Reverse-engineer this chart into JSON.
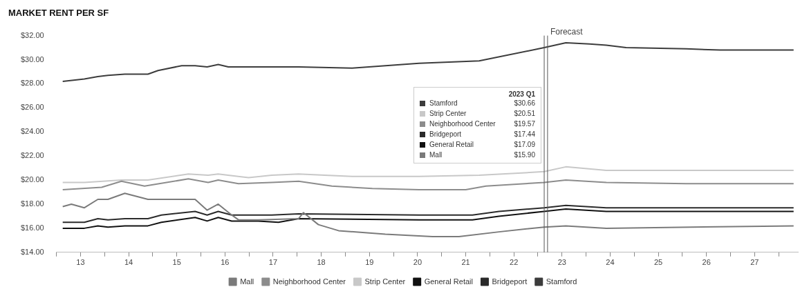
{
  "chart_data": {
    "type": "line",
    "title": "MARKET RENT PER SF",
    "xlim": [
      12.5,
      27.9
    ],
    "xticks": [
      {
        "value": 12.5,
        "label": null
      },
      13,
      {
        "value": 13.5,
        "label": null
      },
      14,
      {
        "value": 14.5,
        "label": null
      },
      15,
      {
        "value": 15.5,
        "label": null
      },
      16,
      {
        "value": 16.5,
        "label": null
      },
      17,
      {
        "value": 17.5,
        "label": null
      },
      18,
      {
        "value": 18.5,
        "label": null
      },
      19,
      {
        "value": 19.5,
        "label": null
      },
      20,
      {
        "value": 20.5,
        "label": null
      },
      21,
      {
        "value": 21.5,
        "label": null
      },
      22,
      {
        "value": 22.5,
        "label": null
      },
      23,
      {
        "value": 23.5,
        "label": null
      },
      24,
      {
        "value": 24.5,
        "label": null
      },
      25,
      {
        "value": 25.5,
        "label": null
      },
      26,
      {
        "value": 26.5,
        "label": null
      },
      27,
      {
        "value": 27.5,
        "label": null
      }
    ],
    "ylim": [
      14,
      32
    ],
    "yticks": [
      {
        "value": 14,
        "label": "$14.00"
      },
      {
        "value": 16,
        "label": "$16.00"
      },
      {
        "value": 18,
        "label": "$18.00"
      },
      {
        "value": 20,
        "label": "$20.00"
      },
      {
        "value": 22,
        "label": "$22.00"
      },
      {
        "value": 24,
        "label": "$24.00"
      },
      {
        "value": 26,
        "label": "$26.00"
      },
      {
        "value": 28,
        "label": "$28.00"
      },
      {
        "value": 30,
        "label": "$30.00"
      },
      {
        "value": 32,
        "label": "$32.00"
      }
    ],
    "grid": false,
    "legend": "bottom",
    "marker": "none",
    "line_style": "solid",
    "ref_lines": [
      {
        "axis": "x",
        "value": 22.63,
        "color": "#555555"
      },
      {
        "axis": "x",
        "value": 22.7,
        "label": "Forecast",
        "color": "#555555"
      }
    ],
    "annotations": [
      "2023 Q1",
      "Stamford",
      "$30.66",
      "Strip Center",
      "$20.51",
      "Neighborhood Center",
      "$19.57",
      "Bridgeport",
      "$17.44",
      "General Retail",
      "$17.09",
      "Mall",
      "$15.90"
    ],
    "series": [
      {
        "name": "Mall",
        "color": "#7a7a7a",
        "x": [
          12.63,
          12.81,
          13.08,
          13.36,
          13.57,
          13.92,
          14.4,
          15.38,
          15.63,
          15.86,
          16.14,
          16.28,
          16.69,
          17.53,
          17.63,
          17.94,
          18.36,
          19.33,
          20.31,
          20.86,
          21.69,
          22.63,
          23.08,
          23.92,
          27.81
        ],
        "values": [
          17.8,
          18.0,
          17.7,
          18.4,
          18.4,
          18.9,
          18.4,
          18.4,
          17.5,
          18.0,
          17.1,
          16.7,
          16.7,
          16.8,
          17.3,
          16.3,
          15.8,
          15.5,
          15.3,
          15.3,
          15.7,
          16.1,
          16.2,
          16.0,
          16.2
        ]
      },
      {
        "name": "Neighborhood Center",
        "color": "#8c8c8c",
        "x": [
          12.63,
          13.44,
          13.85,
          14.33,
          15.24,
          15.65,
          15.86,
          16.28,
          16.97,
          17.53,
          18.22,
          19.06,
          20.03,
          21.0,
          21.42,
          22.63,
          23.08,
          23.92,
          25.58,
          27.81
        ],
        "values": [
          19.2,
          19.4,
          19.9,
          19.5,
          20.1,
          19.8,
          20.0,
          19.7,
          19.8,
          19.9,
          19.5,
          19.3,
          19.2,
          19.2,
          19.5,
          19.8,
          20.0,
          19.8,
          19.7,
          19.7
        ]
      },
      {
        "name": "Strip Center",
        "color": "#c8c8c8",
        "x": [
          12.63,
          13.08,
          13.85,
          14.4,
          15.24,
          15.65,
          15.86,
          16.49,
          16.97,
          17.53,
          18.64,
          20.03,
          21.28,
          22.63,
          23.08,
          23.92,
          27.81
        ],
        "values": [
          19.8,
          19.8,
          20.0,
          20.0,
          20.5,
          20.4,
          20.5,
          20.2,
          20.4,
          20.5,
          20.3,
          20.3,
          20.4,
          20.7,
          21.1,
          20.8,
          20.8
        ]
      },
      {
        "name": "General Retail",
        "color": "#111111",
        "x": [
          12.63,
          13.08,
          13.36,
          13.57,
          13.92,
          14.4,
          14.68,
          15.38,
          15.63,
          15.86,
          16.14,
          16.69,
          17.11,
          17.53,
          20.03,
          21.14,
          21.69,
          22.63,
          23.08,
          23.92,
          25.58,
          27.81
        ],
        "values": [
          16.0,
          16.0,
          16.2,
          16.1,
          16.2,
          16.2,
          16.5,
          16.9,
          16.6,
          16.9,
          16.6,
          16.6,
          16.5,
          16.8,
          16.7,
          16.7,
          17.0,
          17.4,
          17.6,
          17.4,
          17.4,
          17.4
        ]
      },
      {
        "name": "Bridgeport",
        "color": "#2a2a2a",
        "x": [
          12.63,
          13.08,
          13.36,
          13.57,
          13.92,
          14.4,
          14.68,
          15.38,
          15.63,
          15.86,
          16.14,
          16.97,
          17.53,
          20.03,
          21.14,
          21.69,
          22.63,
          23.08,
          23.92,
          27.81
        ],
        "values": [
          16.5,
          16.5,
          16.8,
          16.7,
          16.8,
          16.8,
          17.1,
          17.4,
          17.1,
          17.4,
          17.1,
          17.1,
          17.2,
          17.1,
          17.1,
          17.4,
          17.7,
          17.9,
          17.7,
          17.7
        ]
      },
      {
        "name": "Stamford",
        "color": "#3c3c3c",
        "x": [
          12.63,
          13.08,
          13.36,
          13.57,
          13.92,
          14.4,
          14.61,
          15.1,
          15.38,
          15.63,
          15.86,
          16.07,
          17.53,
          18.64,
          20.03,
          21.28,
          22.63,
          23.08,
          23.57,
          23.92,
          24.33,
          25.58,
          26.28,
          27.81
        ],
        "values": [
          28.2,
          28.4,
          28.6,
          28.7,
          28.8,
          28.8,
          29.1,
          29.5,
          29.5,
          29.4,
          29.6,
          29.4,
          29.4,
          29.3,
          29.7,
          29.9,
          31.0,
          31.4,
          31.3,
          31.2,
          31.0,
          30.9,
          30.8,
          30.8
        ]
      }
    ]
  }
}
